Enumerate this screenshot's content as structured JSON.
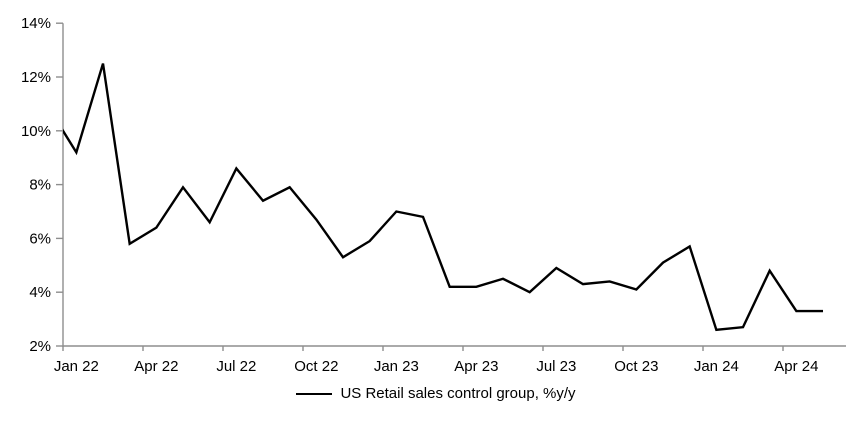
{
  "chart_data": {
    "type": "line",
    "title": "",
    "legend": "US Retail sales control group, %y/y",
    "legend_position": "bottom-center",
    "grid": false,
    "line_color": "#000000",
    "axis_color": "#8e8e8e",
    "ylim": [
      2,
      14
    ],
    "ytick_step": 2,
    "ytick_suffix": "%",
    "x_labels_shown": [
      "Jan 22",
      "Apr 22",
      "Jul 22",
      "Oct 22",
      "Jan 23",
      "Apr 23",
      "Jul 23",
      "Oct 23",
      "Jan 24",
      "Apr 24"
    ],
    "first_point_clipped_at_axis": true,
    "months": [
      "Dec 21",
      "Jan 22",
      "Feb 22",
      "Mar 22",
      "Apr 22",
      "May 22",
      "Jun 22",
      "Jul 22",
      "Aug 22",
      "Sep 22",
      "Oct 22",
      "Nov 22",
      "Dec 22",
      "Jan 23",
      "Feb 23",
      "Mar 23",
      "Apr 23",
      "May 23",
      "Jun 23",
      "Jul 23",
      "Aug 23",
      "Sep 23",
      "Oct 23",
      "Nov 23",
      "Dec 23",
      "Jan 24",
      "Feb 24",
      "Mar 24",
      "Apr 24",
      "May 24"
    ],
    "values": [
      10.8,
      9.2,
      12.5,
      5.8,
      6.4,
      7.9,
      6.6,
      8.6,
      7.4,
      7.9,
      6.7,
      5.3,
      5.9,
      7.0,
      6.8,
      4.2,
      4.2,
      4.5,
      4.0,
      4.9,
      4.3,
      4.4,
      4.1,
      5.1,
      5.7,
      2.6,
      2.7,
      4.8,
      3.3,
      3.3
    ]
  }
}
